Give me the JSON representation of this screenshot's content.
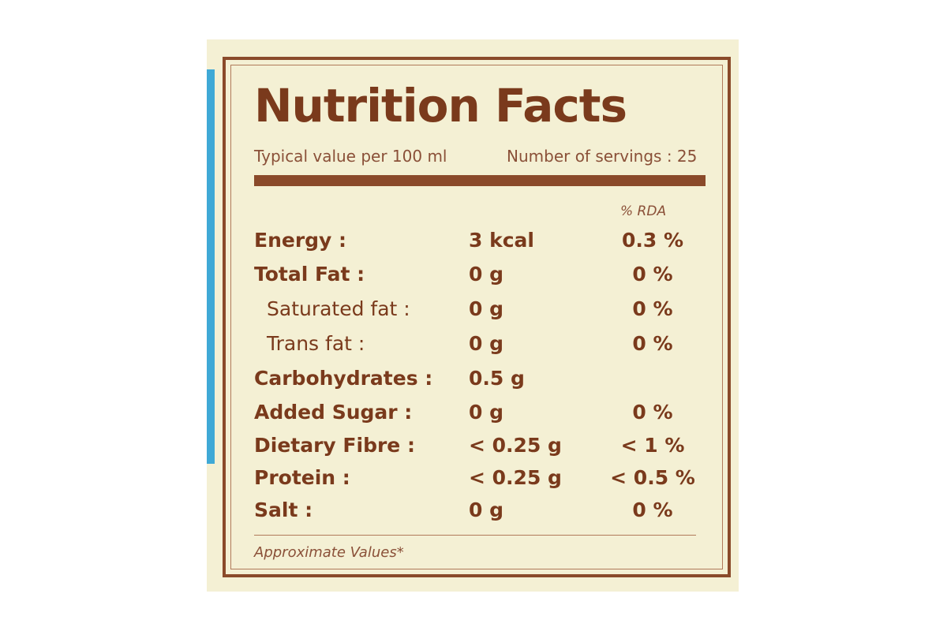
{
  "header": {
    "title": "Nutrition Facts",
    "serving_basis": "Typical value per 100 ml",
    "servings": "Number of servings : 25"
  },
  "table": {
    "rda_header": "% RDA",
    "rows": [
      [
        "Energy :",
        "3 kcal",
        "0.3 %"
      ],
      [
        "Total Fat :",
        "0 g",
        "0 %"
      ],
      [
        "Saturated fat :",
        "0 g",
        "0 %"
      ],
      [
        "Trans fat :",
        "0 g",
        "0 %"
      ],
      [
        "Carbohydrates :",
        "0.5 g"
      ],
      [
        "Added Sugar :",
        "0 g",
        "0 %"
      ],
      [
        "Dietary Fibre :",
        "< 0.25 g",
        "< 1 %"
      ],
      [
        "Protein :",
        "< 0.25 g",
        "< 0.5 %"
      ],
      [
        "Salt :",
        "0 g",
        "0 %"
      ]
    ]
  },
  "footnote": "Approximate Values*"
}
